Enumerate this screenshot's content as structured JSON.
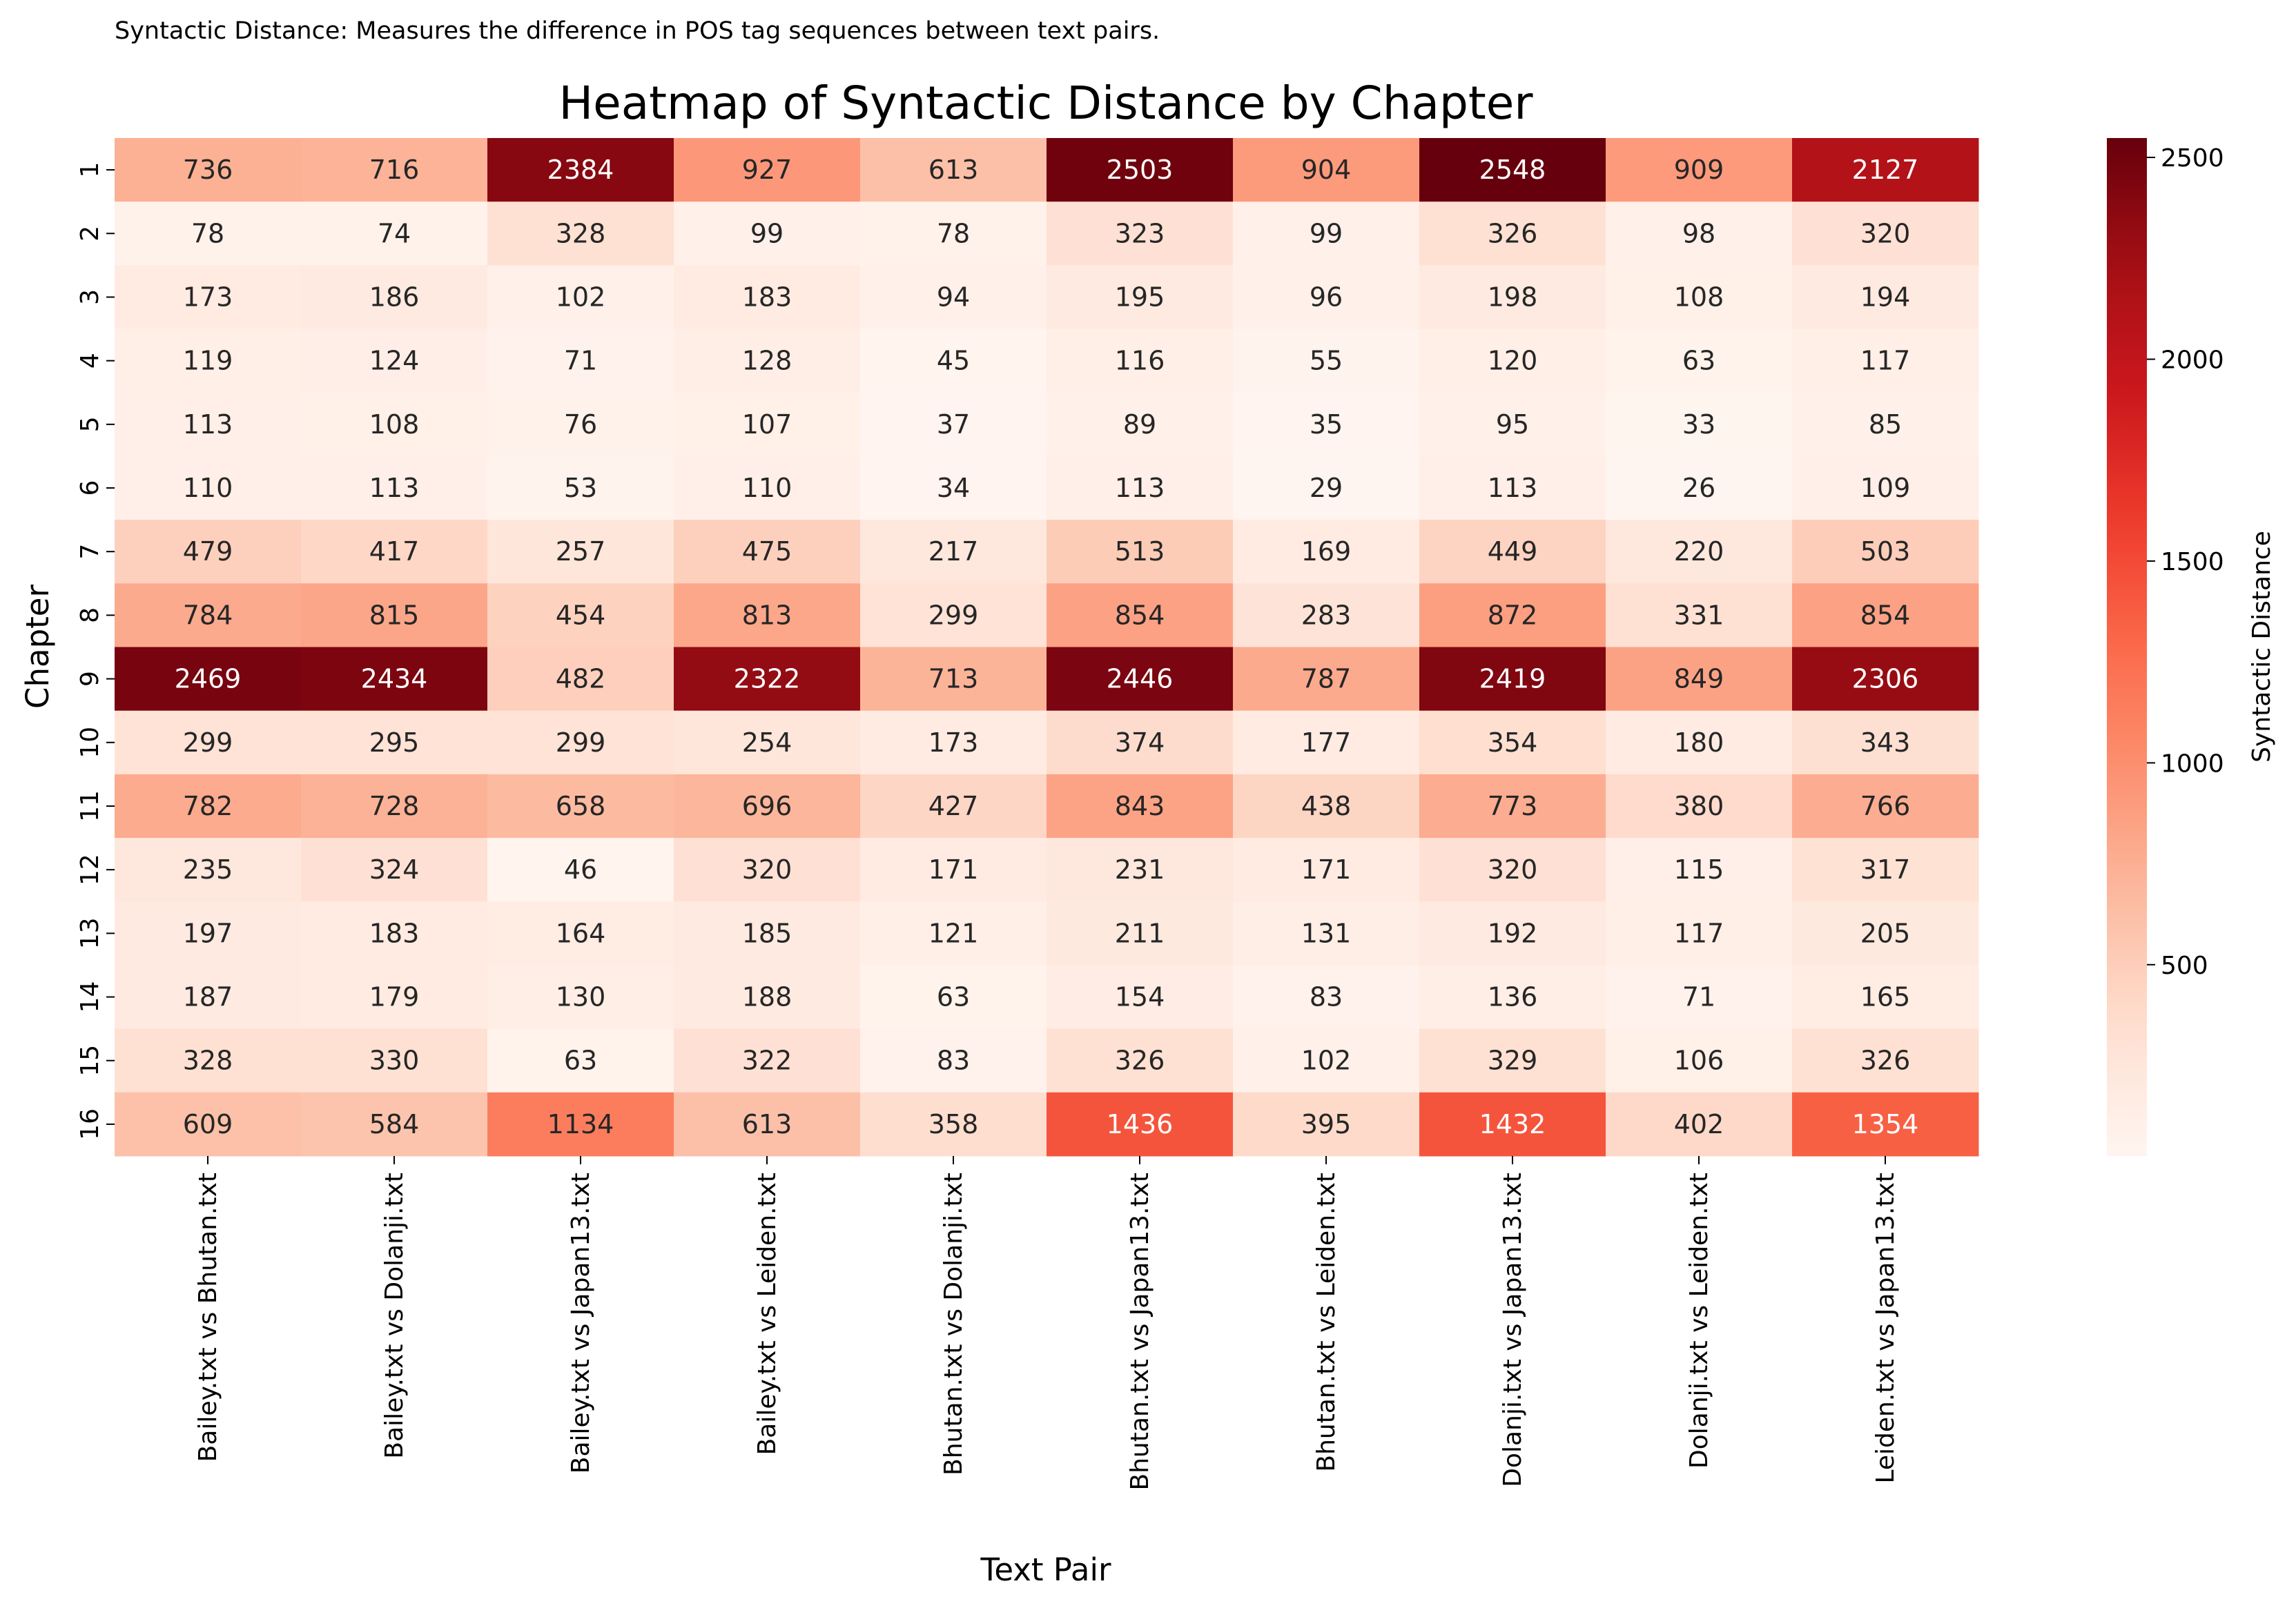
{
  "chart_data": {
    "type": "heatmap",
    "caption": "Syntactic Distance: Measures the difference in POS tag sequences between text pairs.",
    "title": "Heatmap of Syntactic Distance by Chapter",
    "xlabel": "Text Pair",
    "ylabel": "Chapter",
    "colorbar_label": "Syntactic Distance",
    "colormap": "Reds",
    "colorbar_range": [
      26,
      2548
    ],
    "colorbar_ticks": [
      500,
      1000,
      1500,
      2000,
      2500
    ],
    "x_categories": [
      "Bailey.txt vs Bhutan.txt",
      "Bailey.txt vs Dolanji.txt",
      "Bailey.txt vs Japan13.txt",
      "Bailey.txt vs Leiden.txt",
      "Bhutan.txt vs Dolanji.txt",
      "Bhutan.txt vs Japan13.txt",
      "Bhutan.txt vs Leiden.txt",
      "Dolanji.txt vs Japan13.txt",
      "Dolanji.txt vs Leiden.txt",
      "Leiden.txt vs Japan13.txt"
    ],
    "y_categories": [
      "1",
      "2",
      "3",
      "4",
      "5",
      "6",
      "7",
      "8",
      "9",
      "10",
      "11",
      "12",
      "13",
      "14",
      "15",
      "16"
    ],
    "values": [
      [
        736,
        716,
        2384,
        927,
        613,
        2503,
        904,
        2548,
        909,
        2127
      ],
      [
        78,
        74,
        328,
        99,
        78,
        323,
        99,
        326,
        98,
        320
      ],
      [
        173,
        186,
        102,
        183,
        94,
        195,
        96,
        198,
        108,
        194
      ],
      [
        119,
        124,
        71,
        128,
        45,
        116,
        55,
        120,
        63,
        117
      ],
      [
        113,
        108,
        76,
        107,
        37,
        89,
        35,
        95,
        33,
        85
      ],
      [
        110,
        113,
        53,
        110,
        34,
        113,
        29,
        113,
        26,
        109
      ],
      [
        479,
        417,
        257,
        475,
        217,
        513,
        169,
        449,
        220,
        503
      ],
      [
        784,
        815,
        454,
        813,
        299,
        854,
        283,
        872,
        331,
        854
      ],
      [
        2469,
        2434,
        482,
        2322,
        713,
        2446,
        787,
        2419,
        849,
        2306
      ],
      [
        299,
        295,
        299,
        254,
        173,
        374,
        177,
        354,
        180,
        343
      ],
      [
        782,
        728,
        658,
        696,
        427,
        843,
        438,
        773,
        380,
        766
      ],
      [
        235,
        324,
        46,
        320,
        171,
        231,
        171,
        320,
        115,
        317
      ],
      [
        197,
        183,
        164,
        185,
        121,
        211,
        131,
        192,
        117,
        205
      ],
      [
        187,
        179,
        130,
        188,
        63,
        154,
        83,
        136,
        71,
        165
      ],
      [
        328,
        330,
        63,
        322,
        83,
        326,
        102,
        329,
        106,
        326
      ],
      [
        609,
        584,
        1134,
        613,
        358,
        1436,
        395,
        1432,
        402,
        1354
      ]
    ]
  }
}
